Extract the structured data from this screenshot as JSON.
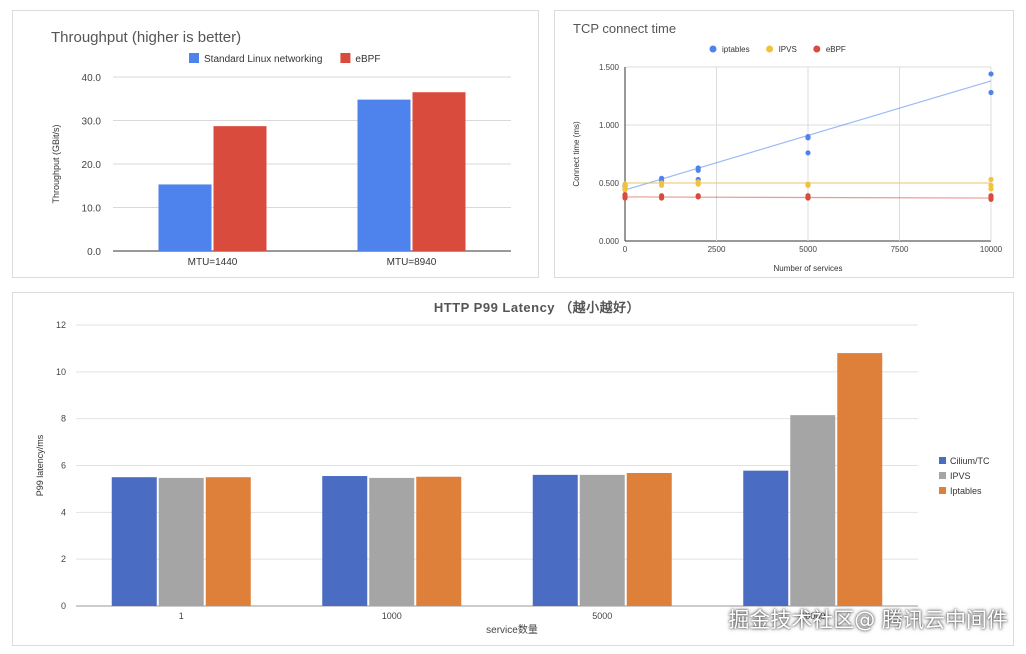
{
  "chart_data": [
    {
      "type": "bar",
      "title": "Throughput (higher is better)",
      "xlabel": "",
      "ylabel": "Throughput (GBit/s)",
      "ylim": [
        0,
        40
      ],
      "yticks": [
        "0.0",
        "10.0",
        "20.0",
        "30.0",
        "40.0"
      ],
      "categories": [
        "MTU=1440",
        "MTU=8940"
      ],
      "series": [
        {
          "name": "Standard Linux networking",
          "color": "#4e82ec",
          "values": [
            15.3,
            34.8
          ]
        },
        {
          "name": "eBPF",
          "color": "#d94b3d",
          "values": [
            28.7,
            36.5
          ]
        }
      ],
      "legend": "top"
    },
    {
      "type": "scatter",
      "title": "TCP connect time",
      "xlabel": "Number of services",
      "ylabel": "Connect time (ms)",
      "xlim": [
        0,
        10000
      ],
      "ylim": [
        0,
        1.5
      ],
      "xticks": [
        "0",
        "2500",
        "5000",
        "7500",
        "10000"
      ],
      "yticks": [
        "0.000",
        "0.500",
        "1.000",
        "1.500"
      ],
      "series": [
        {
          "name": "iptables",
          "color": "#4e82ec",
          "points": [
            [
              0,
              0.47
            ],
            [
              0,
              0.45
            ],
            [
              0,
              0.48
            ],
            [
              1000,
              0.54
            ],
            [
              1000,
              0.52
            ],
            [
              2000,
              0.63
            ],
            [
              2000,
              0.61
            ],
            [
              2000,
              0.53
            ],
            [
              5000,
              0.9
            ],
            [
              5000,
              0.89
            ],
            [
              5000,
              0.76
            ],
            [
              10000,
              1.44
            ],
            [
              10000,
              1.28
            ]
          ],
          "trendline": [
            [
              0,
              0.44
            ],
            [
              10000,
              1.38
            ]
          ]
        },
        {
          "name": "IPVS",
          "color": "#f3c23c",
          "points": [
            [
              0,
              0.46
            ],
            [
              0,
              0.49
            ],
            [
              0,
              0.44
            ],
            [
              1000,
              0.48
            ],
            [
              1000,
              0.5
            ],
            [
              2000,
              0.49
            ],
            [
              2000,
              0.51
            ],
            [
              5000,
              0.48
            ],
            [
              5000,
              0.49
            ],
            [
              10000,
              0.53
            ],
            [
              10000,
              0.48
            ],
            [
              10000,
              0.45
            ]
          ],
          "trendline": [
            [
              0,
              0.5
            ],
            [
              10000,
              0.5
            ]
          ]
        },
        {
          "name": "eBPF",
          "color": "#d94b3d",
          "points": [
            [
              0,
              0.38
            ],
            [
              0,
              0.37
            ],
            [
              0,
              0.4
            ],
            [
              1000,
              0.39
            ],
            [
              1000,
              0.37
            ],
            [
              2000,
              0.39
            ],
            [
              2000,
              0.38
            ],
            [
              5000,
              0.38
            ],
            [
              5000,
              0.39
            ],
            [
              5000,
              0.37
            ],
            [
              10000,
              0.38
            ],
            [
              10000,
              0.36
            ],
            [
              10000,
              0.39
            ]
          ],
          "trendline": [
            [
              0,
              0.38
            ],
            [
              10000,
              0.37
            ]
          ]
        }
      ],
      "legend": "top"
    },
    {
      "type": "bar",
      "title": "HTTP P99 Latency （越小越好）",
      "xlabel": "service数量",
      "ylabel": "P99 latency/ms",
      "ylim": [
        0,
        12
      ],
      "yticks": [
        "0",
        "2",
        "4",
        "6",
        "8",
        "10",
        "12"
      ],
      "categories": [
        "1",
        "1000",
        "5000",
        "10000"
      ],
      "series": [
        {
          "name": "Cilium/TC",
          "color": "#4a6cc2",
          "values": [
            5.5,
            5.55,
            5.6,
            5.78
          ]
        },
        {
          "name": "IPVS",
          "color": "#a5a5a5",
          "values": [
            5.47,
            5.47,
            5.6,
            8.15
          ]
        },
        {
          "name": "Iptables",
          "color": "#de7f3a",
          "values": [
            5.5,
            5.52,
            5.68,
            10.8
          ]
        }
      ],
      "legend": "right"
    }
  ],
  "watermark": "掘金技术社区@ 腾讯云中间件"
}
